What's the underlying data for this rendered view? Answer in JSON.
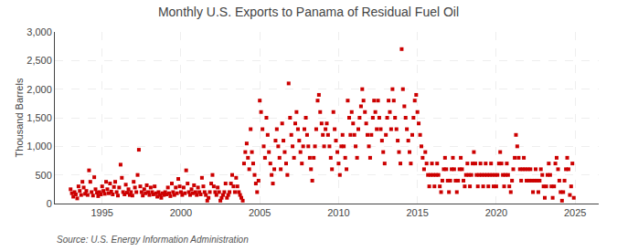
{
  "chart_data": {
    "type": "scatter",
    "title": "Monthly U.S. Exports to Panama of Residual Fuel Oil",
    "ylabel": "Thousand Barrels",
    "annotations": [
      "Source: U.S. Energy Information Administration"
    ],
    "color": "#cc0000",
    "marker": "square",
    "grid": true,
    "xlim": [
      1992.0,
      2026.5
    ],
    "xticks": [
      1995,
      2000,
      2005,
      2010,
      2015,
      2020,
      2025
    ],
    "ylim": [
      0,
      3000
    ],
    "yticks": [
      0,
      500,
      {
        "value": 1000,
        "label": "1,000"
      },
      {
        "value": 1500,
        "label": "1,500"
      },
      {
        "value": 2000,
        "label": "2,000"
      },
      {
        "value": 2500,
        "label": "2,500"
      },
      {
        "value": 3000,
        "label": "3,000"
      }
    ],
    "x": [
      1993.0,
      1993.08,
      1993.17,
      1993.25,
      1993.33,
      1993.42,
      1993.5,
      1993.58,
      1993.67,
      1993.75,
      1993.83,
      1993.92,
      1994.0,
      1994.08,
      1994.17,
      1994.25,
      1994.33,
      1994.42,
      1994.5,
      1994.58,
      1994.67,
      1994.75,
      1994.83,
      1994.92,
      1995.0,
      1995.08,
      1995.17,
      1995.25,
      1995.33,
      1995.42,
      1995.5,
      1995.58,
      1995.67,
      1995.75,
      1995.83,
      1995.92,
      1996.0,
      1996.08,
      1996.17,
      1996.25,
      1996.33,
      1996.42,
      1996.5,
      1996.58,
      1996.67,
      1996.75,
      1996.83,
      1996.92,
      1997.0,
      1997.08,
      1997.17,
      1997.25,
      1997.33,
      1997.42,
      1997.5,
      1997.58,
      1997.67,
      1997.75,
      1997.83,
      1997.92,
      1998.0,
      1998.08,
      1998.17,
      1998.25,
      1998.33,
      1998.42,
      1998.5,
      1998.58,
      1998.67,
      1998.75,
      1998.83,
      1998.92,
      1999.0,
      1999.08,
      1999.17,
      1999.25,
      1999.33,
      1999.42,
      1999.5,
      1999.58,
      1999.67,
      1999.75,
      1999.83,
      1999.92,
      2000.0,
      2000.08,
      2000.17,
      2000.25,
      2000.33,
      2000.42,
      2000.5,
      2000.58,
      2000.67,
      2000.75,
      2000.83,
      2000.92,
      2001.0,
      2001.08,
      2001.17,
      2001.25,
      2001.33,
      2001.42,
      2001.5,
      2001.58,
      2001.67,
      2001.75,
      2001.83,
      2001.92,
      2002.0,
      2002.08,
      2002.17,
      2002.25,
      2002.33,
      2002.42,
      2002.5,
      2002.58,
      2002.67,
      2002.75,
      2002.83,
      2002.92,
      2003.0,
      2003.08,
      2003.17,
      2003.25,
      2003.33,
      2003.42,
      2003.5,
      2003.58,
      2003.67,
      2003.75,
      2003.83,
      2003.92,
      2004.0,
      2004.08,
      2004.17,
      2004.25,
      2004.33,
      2004.42,
      2004.5,
      2004.58,
      2004.67,
      2004.75,
      2004.83,
      2004.92,
      2005.0,
      2005.08,
      2005.17,
      2005.25,
      2005.33,
      2005.42,
      2005.5,
      2005.58,
      2005.67,
      2005.75,
      2005.83,
      2005.92,
      2006.0,
      2006.08,
      2006.17,
      2006.25,
      2006.33,
      2006.42,
      2006.5,
      2006.58,
      2006.67,
      2006.75,
      2006.83,
      2006.92,
      2007.0,
      2007.08,
      2007.17,
      2007.25,
      2007.33,
      2007.42,
      2007.5,
      2007.58,
      2007.67,
      2007.75,
      2007.83,
      2007.92,
      2008.0,
      2008.08,
      2008.17,
      2008.25,
      2008.33,
      2008.42,
      2008.5,
      2008.58,
      2008.67,
      2008.75,
      2008.83,
      2008.92,
      2009.0,
      2009.08,
      2009.17,
      2009.25,
      2009.33,
      2009.42,
      2009.5,
      2009.58,
      2009.67,
      2009.75,
      2009.83,
      2009.92,
      2010.0,
      2010.08,
      2010.17,
      2010.25,
      2010.33,
      2010.42,
      2010.5,
      2010.58,
      2010.67,
      2010.75,
      2010.83,
      2010.92,
      2011.0,
      2011.08,
      2011.17,
      2011.25,
      2011.33,
      2011.42,
      2011.5,
      2011.58,
      2011.67,
      2011.75,
      2011.83,
      2011.92,
      2012.0,
      2012.08,
      2012.17,
      2012.25,
      2012.33,
      2012.42,
      2012.5,
      2012.58,
      2012.67,
      2012.75,
      2012.83,
      2012.92,
      2013.0,
      2013.08,
      2013.17,
      2013.25,
      2013.33,
      2013.42,
      2013.5,
      2013.58,
      2013.67,
      2013.75,
      2013.83,
      2013.92,
      2014.0,
      2014.08,
      2014.17,
      2014.25,
      2014.33,
      2014.42,
      2014.5,
      2014.58,
      2014.67,
      2014.75,
      2014.83,
      2014.92,
      2015.0,
      2015.08,
      2015.17,
      2015.25,
      2015.33,
      2015.42,
      2015.5,
      2015.58,
      2015.67,
      2015.75,
      2015.83,
      2015.92,
      2016.0,
      2016.08,
      2016.17,
      2016.25,
      2016.33,
      2016.42,
      2016.5,
      2016.58,
      2016.67,
      2016.75,
      2016.83,
      2016.92,
      2017.0,
      2017.08,
      2017.17,
      2017.25,
      2017.33,
      2017.42,
      2017.5,
      2017.58,
      2017.67,
      2017.75,
      2017.83,
      2017.92,
      2018.0,
      2018.08,
      2018.17,
      2018.25,
      2018.33,
      2018.42,
      2018.5,
      2018.58,
      2018.67,
      2018.75,
      2018.83,
      2018.92,
      2019.0,
      2019.08,
      2019.17,
      2019.25,
      2019.33,
      2019.42,
      2019.5,
      2019.58,
      2019.67,
      2019.75,
      2019.83,
      2019.92,
      2020.0,
      2020.08,
      2020.17,
      2020.25,
      2020.33,
      2020.42,
      2020.5,
      2020.58,
      2020.67,
      2020.75,
      2020.83,
      2020.92,
      2021.0,
      2021.08,
      2021.17,
      2021.25,
      2021.33,
      2021.42,
      2021.5,
      2021.58,
      2021.67,
      2021.75,
      2021.83,
      2021.92,
      2022.0,
      2022.08,
      2022.17,
      2022.25,
      2022.33,
      2022.42,
      2022.5,
      2022.58,
      2022.67,
      2022.75,
      2022.83,
      2022.92,
      2023.0,
      2023.08,
      2023.17,
      2023.25,
      2023.33,
      2023.42,
      2023.5,
      2023.58,
      2023.67,
      2023.75,
      2023.83,
      2023.92,
      2024.0,
      2024.08,
      2024.17,
      2024.25,
      2024.33,
      2024.42,
      2024.5,
      2024.58,
      2024.67,
      2024.75,
      2024.83,
      2024.92
    ],
    "values": [
      250,
      180,
      120,
      200,
      160,
      90,
      300,
      220,
      150,
      380,
      280,
      170,
      220,
      150,
      580,
      380,
      200,
      140,
      460,
      250,
      190,
      130,
      200,
      160,
      300,
      220,
      170,
      380,
      250,
      180,
      350,
      210,
      160,
      290,
      380,
      200,
      140,
      280,
      680,
      450,
      200,
      160,
      330,
      190,
      250,
      150,
      200,
      140,
      380,
      280,
      200,
      500,
      940,
      300,
      200,
      140,
      250,
      180,
      320,
      200,
      150,
      280,
      200,
      160,
      300,
      180,
      120,
      200,
      150,
      100,
      180,
      150,
      200,
      160,
      280,
      180,
      130,
      350,
      200,
      150,
      280,
      180,
      430,
      300,
      200,
      150,
      280,
      180,
      580,
      350,
      200,
      150,
      250,
      180,
      320,
      200,
      150,
      280,
      200,
      160,
      450,
      300,
      200,
      150,
      50,
      100,
      200,
      350,
      500,
      300,
      200,
      150,
      280,
      200,
      50,
      100,
      150,
      200,
      350,
      100,
      150,
      200,
      350,
      500,
      300,
      200,
      450,
      300,
      200,
      150,
      100,
      50,
      700,
      900,
      1050,
      800,
      600,
      1300,
      900,
      700,
      500,
      350,
      200,
      400,
      1800,
      1600,
      1300,
      1000,
      800,
      1500,
      1200,
      900,
      700,
      500,
      350,
      600,
      1100,
      1300,
      1000,
      800,
      600,
      1400,
      1100,
      900,
      700,
      500,
      2100,
      1500,
      1200,
      1000,
      800,
      1400,
      1600,
      1300,
      1100,
      900,
      700,
      1000,
      1300,
      1500,
      1200,
      1000,
      800,
      600,
      400,
      800,
      1000,
      1300,
      1800,
      1900,
      1600,
      1400,
      1200,
      1000,
      1300,
      1400,
      1200,
      1000,
      800,
      600,
      1600,
      1300,
      1100,
      900,
      700,
      500,
      1000,
      1200,
      1000,
      800,
      600,
      1800,
      1500,
      1200,
      1600,
      1400,
      1200,
      1000,
      800,
      1300,
      1500,
      1700,
      2000,
      1800,
      1600,
      1400,
      1200,
      1000,
      800,
      1200,
      1500,
      1800,
      1600,
      1300,
      1800,
      1500,
      1300,
      1100,
      900,
      700,
      1200,
      1500,
      1800,
      1600,
      1300,
      2000,
      1800,
      1500,
      1300,
      1100,
      900,
      700,
      2700,
      2000,
      1700,
      1500,
      1300,
      1100,
      900,
      700,
      1200,
      1500,
      1800,
      1900,
      1600,
      1400,
      1200,
      1000,
      800,
      600,
      900,
      700,
      500,
      300,
      500,
      700,
      500,
      300,
      500,
      700,
      500,
      300,
      200,
      400,
      600,
      800,
      600,
      400,
      200,
      400,
      600,
      800,
      600,
      400,
      200,
      400,
      600,
      800,
      600,
      400,
      300,
      500,
      700,
      500,
      300,
      500,
      700,
      900,
      700,
      500,
      300,
      500,
      700,
      500,
      300,
      500,
      700,
      500,
      300,
      500,
      700,
      500,
      300,
      500,
      300,
      500,
      700,
      900,
      700,
      500,
      300,
      500,
      700,
      500,
      300,
      200,
      400,
      600,
      800,
      1200,
      1000,
      800,
      600,
      400,
      600,
      800,
      600,
      400,
      600,
      400,
      600,
      400,
      200,
      400,
      600,
      400,
      200,
      400,
      600,
      500,
      300,
      100,
      300,
      500,
      700,
      500,
      300,
      100,
      300,
      700,
      800,
      600,
      400,
      200,
      50,
      200,
      400,
      600,
      800,
      600,
      150,
      300,
      700,
      100
    ]
  }
}
